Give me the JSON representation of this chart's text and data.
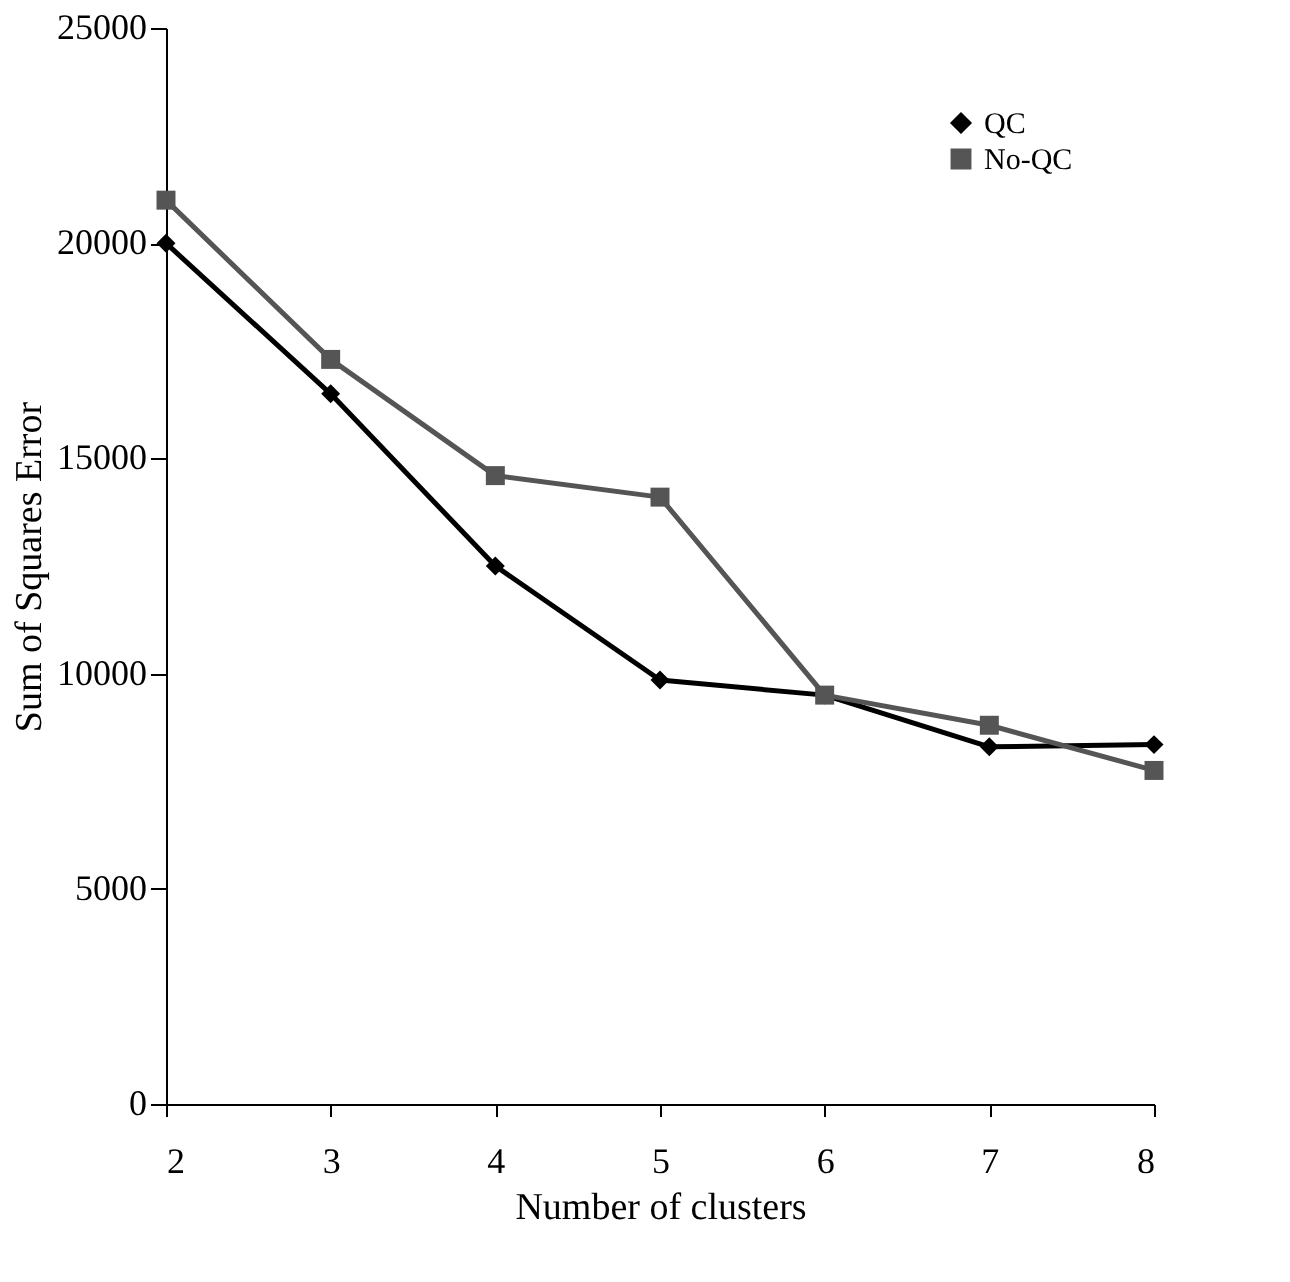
{
  "chart_data": {
    "type": "line",
    "xlabel": "Number of clusters",
    "ylabel": "Sum of Squares Error",
    "x": [
      2,
      3,
      4,
      5,
      6,
      7,
      8
    ],
    "series": [
      {
        "name": "QC",
        "color": "#000000",
        "marker": "diamond",
        "values": [
          20000,
          16500,
          12500,
          9850,
          9500,
          8300,
          8350
        ]
      },
      {
        "name": "No-QC",
        "color": "#555555",
        "marker": "square",
        "values": [
          21000,
          17300,
          14600,
          14100,
          9500,
          8800,
          7750
        ]
      }
    ],
    "xlim": [
      2,
      8
    ],
    "xticks": [
      2,
      3,
      4,
      5,
      6,
      7,
      8
    ],
    "ylim": [
      0,
      25000
    ],
    "yticks": [
      0,
      5000,
      10000,
      15000,
      20000,
      25000
    ],
    "grid": false,
    "legend": "top right",
    "line_style": "solid"
  }
}
